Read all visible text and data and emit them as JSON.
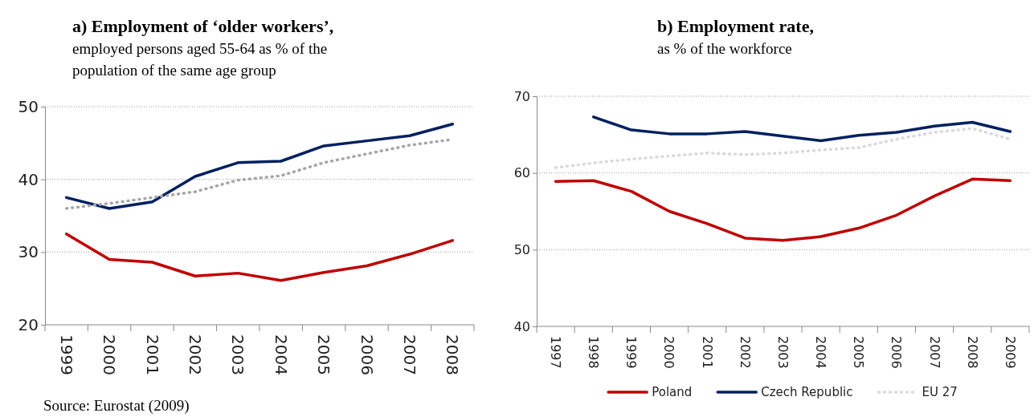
{
  "chart_data": [
    {
      "type": "line",
      "title": "a) Employment of ‘older workers’,",
      "subtitle": "employed persons aged 55-64 as % of the population of the same age group",
      "categories": [
        "1999",
        "2000",
        "2001",
        "2002",
        "2003",
        "2004",
        "2005",
        "2006",
        "2007",
        "2008"
      ],
      "series": [
        {
          "color": "#c00000",
          "values": [
            32.5,
            29.0,
            28.6,
            26.7,
            27.1,
            26.1,
            27.2,
            28.1,
            29.7,
            31.6
          ]
        },
        {
          "color": "#002060",
          "values": [
            37.5,
            36.0,
            36.9,
            40.4,
            42.3,
            42.5,
            44.6,
            45.3,
            46.0,
            47.6
          ]
        },
        {
          "color": "#a6a6a6",
          "line_style": "dotted",
          "values": [
            36.0,
            36.7,
            37.5,
            38.3,
            39.9,
            40.5,
            42.3,
            43.5,
            44.7,
            45.5
          ]
        }
      ],
      "ylim": [
        20,
        50
      ],
      "yticks": [
        20,
        30,
        40,
        50
      ],
      "grid": "y",
      "annotations": [
        "Source: Eurostat (2009)"
      ]
    },
    {
      "type": "line",
      "title": "b) Employment rate,",
      "subtitle": "as % of the workforce",
      "categories": [
        "1997",
        "1998",
        "1999",
        "2000",
        "2001",
        "2002",
        "2003",
        "2004",
        "2005",
        "2006",
        "2007",
        "2008",
        "2009"
      ],
      "series": [
        {
          "name": "Poland",
          "color": "#c00000",
          "values": [
            58.9,
            59.0,
            57.6,
            55.0,
            53.4,
            51.5,
            51.2,
            51.7,
            52.8,
            54.5,
            57.0,
            59.2,
            59.0
          ]
        },
        {
          "name": "Czech Republic",
          "color": "#002060",
          "values": [
            null,
            67.3,
            65.6,
            65.1,
            65.1,
            65.4,
            64.8,
            64.2,
            64.9,
            65.3,
            66.1,
            66.6,
            65.4
          ]
        },
        {
          "name": "EU 27",
          "color": "#d9d9d9",
          "line_style": "dotted",
          "values": [
            60.7,
            61.3,
            61.8,
            62.2,
            62.6,
            62.4,
            62.6,
            63.0,
            63.3,
            64.4,
            65.3,
            65.8,
            64.4
          ]
        }
      ],
      "ylim": [
        40,
        70
      ],
      "yticks": [
        40,
        50,
        60,
        70
      ],
      "grid": "y",
      "legend": "bottom"
    }
  ]
}
